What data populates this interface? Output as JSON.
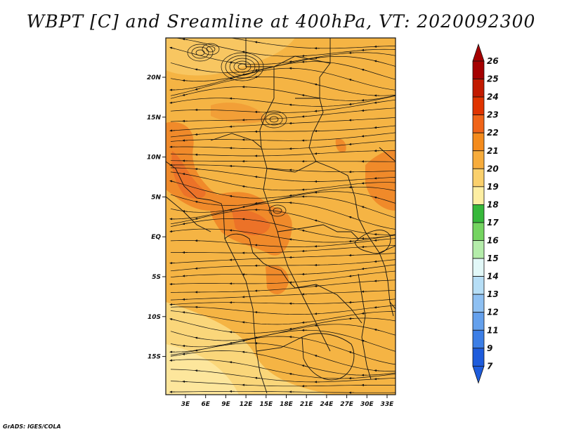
{
  "title": "WBPT [C] and Sreamline at 400hPa, VT: 2020092300",
  "footer": "GrADS: IGES/COLA",
  "map": {
    "lon_labels": [
      "3E",
      "6E",
      "9E",
      "12E",
      "15E",
      "18E",
      "21E",
      "24E",
      "27E",
      "30E",
      "33E"
    ],
    "lat_labels": [
      "20N",
      "15N",
      "10N",
      "5N",
      "EQ",
      "5S",
      "10S",
      "15S"
    ],
    "field_colors": {
      "base": "#f5b444",
      "light": "#fad67a",
      "pale": "#fde69c",
      "hot": "#f08a2a",
      "hotter": "#ec7228"
    }
  },
  "colorbar": {
    "labels": [
      "26",
      "25",
      "24",
      "23",
      "22",
      "21",
      "20",
      "19",
      "18",
      "17",
      "16",
      "15",
      "14",
      "13",
      "12",
      "11",
      "9",
      "7"
    ],
    "colors": [
      "#a50000",
      "#c21a00",
      "#e03400",
      "#f06418",
      "#f48b1c",
      "#f7ac3c",
      "#fad06c",
      "#fdeea2",
      "#36b83a",
      "#74d460",
      "#b4ecaa",
      "#e2f8f8",
      "#b6def6",
      "#8ec0f2",
      "#64a0ec",
      "#3c7ee6",
      "#1e5cdc"
    ],
    "top_arrow_color": "#a50000",
    "bottom_arrow_color": "#1e5cdc"
  }
}
